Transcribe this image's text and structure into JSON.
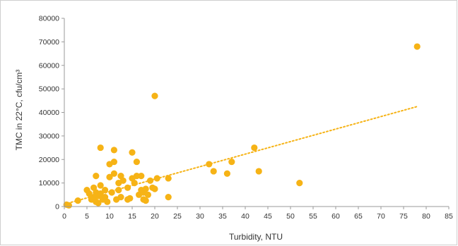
{
  "chart_data": {
    "type": "scatter",
    "title": "",
    "xlabel": "Turbidity, NTU",
    "ylabel": "TMC in 22°C, cfu/cm³",
    "xlim": [
      0,
      85
    ],
    "ylim": [
      0,
      80000
    ],
    "x_ticks": [
      0,
      5,
      10,
      15,
      20,
      25,
      30,
      35,
      40,
      45,
      50,
      55,
      60,
      65,
      70,
      75,
      80,
      85
    ],
    "y_ticks": [
      0,
      10000,
      20000,
      30000,
      40000,
      50000,
      60000,
      70000,
      80000
    ],
    "grid": false,
    "legend": "none",
    "colors": {
      "points": "#f6b316",
      "trendline": "#f6b316"
    },
    "trendline": {
      "style": "dotted",
      "x": [
        0,
        78
      ],
      "y": [
        1000,
        42500
      ]
    },
    "points": [
      {
        "x": 0.5,
        "y": 800
      },
      {
        "x": 1,
        "y": 500
      },
      {
        "x": 3,
        "y": 2500
      },
      {
        "x": 5,
        "y": 7000
      },
      {
        "x": 5.5,
        "y": 5500
      },
      {
        "x": 6,
        "y": 3000
      },
      {
        "x": 6.5,
        "y": 8000
      },
      {
        "x": 6.5,
        "y": 4000
      },
      {
        "x": 7,
        "y": 13000
      },
      {
        "x": 7,
        "y": 6000
      },
      {
        "x": 7,
        "y": 2000
      },
      {
        "x": 7.5,
        "y": 4500
      },
      {
        "x": 7.5,
        "y": 1500
      },
      {
        "x": 8,
        "y": 9000
      },
      {
        "x": 8,
        "y": 5500
      },
      {
        "x": 8,
        "y": 25000
      },
      {
        "x": 8.5,
        "y": 3000
      },
      {
        "x": 9,
        "y": 7000
      },
      {
        "x": 9,
        "y": 4000
      },
      {
        "x": 9.5,
        "y": 2000
      },
      {
        "x": 10,
        "y": 12500
      },
      {
        "x": 10,
        "y": 18000
      },
      {
        "x": 10.5,
        "y": 6000
      },
      {
        "x": 11,
        "y": 24000
      },
      {
        "x": 11,
        "y": 19000
      },
      {
        "x": 11,
        "y": 14000
      },
      {
        "x": 11.5,
        "y": 3000
      },
      {
        "x": 12,
        "y": 10000
      },
      {
        "x": 12,
        "y": 7000
      },
      {
        "x": 12.5,
        "y": 13000
      },
      {
        "x": 12.5,
        "y": 4000
      },
      {
        "x": 13,
        "y": 11000
      },
      {
        "x": 14,
        "y": 3000
      },
      {
        "x": 14,
        "y": 8000
      },
      {
        "x": 14.5,
        "y": 3500
      },
      {
        "x": 15,
        "y": 23000
      },
      {
        "x": 15,
        "y": 12000
      },
      {
        "x": 15.5,
        "y": 10000
      },
      {
        "x": 16,
        "y": 19000
      },
      {
        "x": 16,
        "y": 13000
      },
      {
        "x": 16.5,
        "y": 5000
      },
      {
        "x": 17,
        "y": 7000
      },
      {
        "x": 17,
        "y": 13000
      },
      {
        "x": 17.5,
        "y": 3000
      },
      {
        "x": 17.5,
        "y": 6000
      },
      {
        "x": 18,
        "y": 2500
      },
      {
        "x": 18,
        "y": 7500
      },
      {
        "x": 18.5,
        "y": 5000
      },
      {
        "x": 19,
        "y": 11000
      },
      {
        "x": 19.5,
        "y": 8000
      },
      {
        "x": 20,
        "y": 47000
      },
      {
        "x": 20,
        "y": 7500
      },
      {
        "x": 20.5,
        "y": 12000
      },
      {
        "x": 23,
        "y": 12000
      },
      {
        "x": 23,
        "y": 4000
      },
      {
        "x": 32,
        "y": 18000
      },
      {
        "x": 33,
        "y": 15000
      },
      {
        "x": 36,
        "y": 14000
      },
      {
        "x": 37,
        "y": 19000
      },
      {
        "x": 42,
        "y": 25000
      },
      {
        "x": 43,
        "y": 15000
      },
      {
        "x": 52,
        "y": 10000
      },
      {
        "x": 78,
        "y": 68000
      }
    ]
  }
}
